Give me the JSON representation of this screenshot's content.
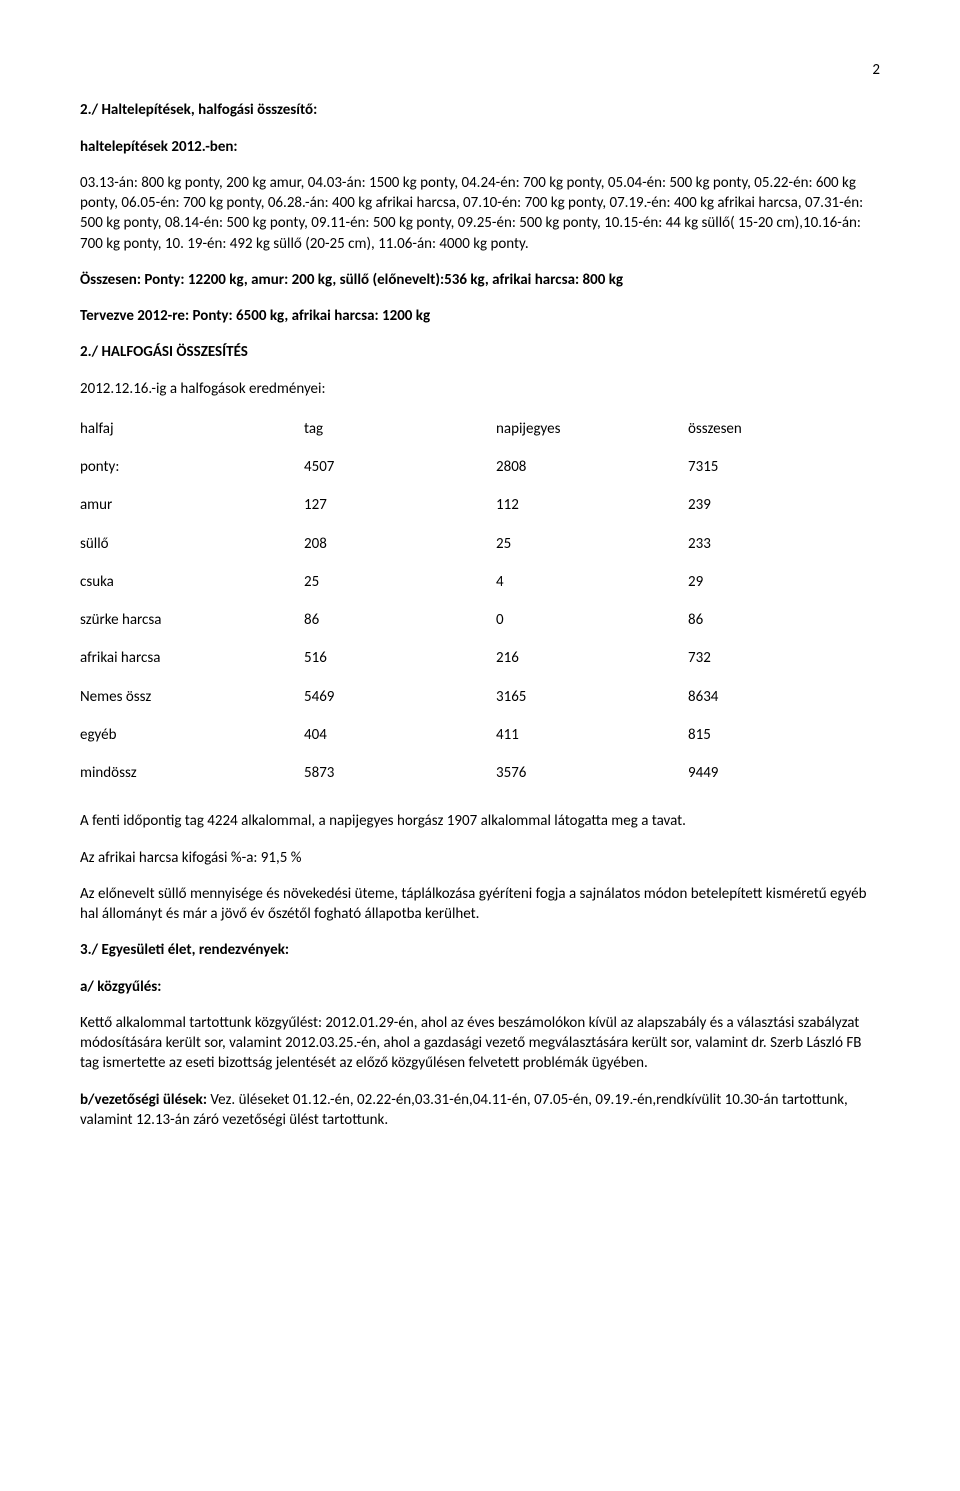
{
  "page_number": "2",
  "section2": {
    "title": "2./ Haltelepítések, halfogási összesítő:",
    "subtitle": "haltelepítések 2012.-ben:",
    "body": "03.13-án: 800 kg ponty, 200 kg amur, 04.03-án: 1500 kg ponty, 04.24-én: 700 kg ponty, 05.04-én: 500 kg ponty, 05.22-én: 600 kg ponty, 06.05-én: 700 kg ponty, 06.28.-án: 400 kg afrikai harcsa, 07.10-én: 700 kg ponty, 07.19.-én: 400 kg afrikai harcsa, 07.31-én: 500 kg ponty, 08.14-én: 500 kg ponty, 09.11-én: 500 kg ponty, 09.25-én: 500 kg ponty, 10.15-én: 44 kg süllő( 15-20 cm),10.16-án: 700 kg ponty, 10. 19-én: 492 kg süllő (20-25 cm), 11.06-án: 4000 kg ponty.",
    "totals": "Összesen: Ponty: 12200 kg, amur: 200 kg, süllő (előnevelt):536 kg, afrikai harcsa: 800 kg",
    "planned": "Tervezve 2012-re: Ponty: 6500 kg, afrikai harcsa: 1200 kg"
  },
  "halfogas": {
    "title": "2./ HALFOGÁSI ÖSSZESÍTÉS",
    "intro": "2012.12.16.-ig a halfogások eredményei:",
    "header": {
      "c0": "halfaj",
      "c1": "tag",
      "c2": "napijegyes",
      "c3": "összesen"
    },
    "rows": [
      {
        "c0": "ponty:",
        "c1": "4507",
        "c2": "2808",
        "c3": "7315"
      },
      {
        "c0": "amur",
        "c1": "127",
        "c2": "112",
        "c3": "239"
      },
      {
        "c0": "süllő",
        "c1": "208",
        "c2": "25",
        "c3": "233"
      },
      {
        "c0": "csuka",
        "c1": "25",
        "c2": "4",
        "c3": "29"
      },
      {
        "c0": "szürke harcsa",
        "c1": "86",
        "c2": "0",
        "c3": "86"
      },
      {
        "c0": "afrikai harcsa",
        "c1": "516",
        "c2": "216",
        "c3": "732"
      },
      {
        "c0": "Nemes össz",
        "c1": "5469",
        "c2": "3165",
        "c3": "8634"
      },
      {
        "c0": "egyéb",
        "c1": "404",
        "c2": "411",
        "c3": "815"
      },
      {
        "c0": "mindössz",
        "c1": "5873",
        "c2": "3576",
        "c3": "9449"
      }
    ],
    "after1": "A fenti időpontig tag 4224 alkalommal, a napijegyes horgász 1907 alkalommal látogatta meg a tavat.",
    "after2": "Az afrikai harcsa kifogási %-a: 91,5 %",
    "after3": "Az előnevelt süllő mennyisége és növekedési üteme, táplálkozása gyéríteni fogja a sajnálatos módon betelepített kisméretű egyéb hal állományt és már a jövő év őszétől fogható állapotba kerülhet."
  },
  "section3": {
    "title": "3./ Egyesületi élet, rendezvények:",
    "a_title": "a/ közgyűlés:",
    "a_body": "Kettő alkalommal tartottunk közgyűlést: 2012.01.29-én, ahol az éves beszámolókon kívül az alapszabály és a választási szabályzat módosítására került sor, valamint 2012.03.25.-én, ahol a gazdasági vezető megválasztására került sor, valamint dr. Szerb László FB tag ismertette az eseti bizottság jelentését az előző közgyűlésen felvetett problémák ügyében.",
    "b_title": "b/vezetőségi ülések:",
    "b_body": " Vez. üléseket 01.12.-én, 02.22-én,03.31-én,04.11-én, 07.05-én, 09.19.-én,rendkívülit 10.30-án tartottunk, valamint 12.13-án záró vezetőségi ülést tartottunk."
  }
}
